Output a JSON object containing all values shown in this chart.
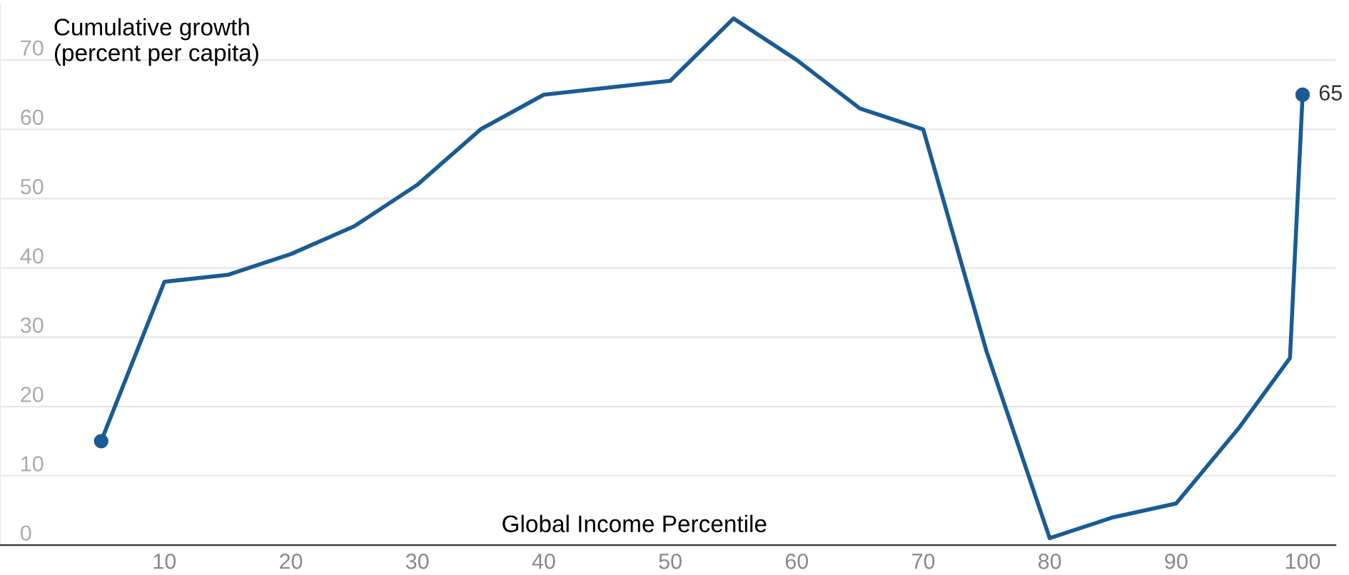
{
  "chart_data": {
    "type": "line",
    "xlabel": "Global Income Percentile",
    "ylabel": "Cumulative growth\n(percent per capita)",
    "x": [
      5,
      10,
      15,
      20,
      25,
      30,
      35,
      40,
      45,
      50,
      55,
      60,
      65,
      70,
      75,
      80,
      85,
      90,
      95,
      99,
      100
    ],
    "series": [
      {
        "color": "#1a5b94",
        "values": [
          15,
          38,
          39,
          42,
          46,
          52,
          60,
          65,
          66,
          67,
          76,
          70,
          63,
          60,
          28,
          1,
          4,
          6,
          17,
          27,
          65
        ]
      },
      {
        "type": "scatter",
        "marker": "circle",
        "color": "#1a5b94",
        "x": [
          5,
          100
        ],
        "values": [
          15,
          65
        ],
        "value_labels": [
          null,
          "65"
        ]
      }
    ],
    "xlim": [
      -3,
      102.6
    ],
    "xticks": [
      10,
      20,
      30,
      40,
      50,
      60,
      70,
      80,
      90,
      100
    ],
    "ylim": [
      0,
      78
    ],
    "yticks": [
      0,
      10,
      20,
      30,
      40,
      50,
      60,
      70
    ],
    "grid": "y",
    "legend": false
  }
}
